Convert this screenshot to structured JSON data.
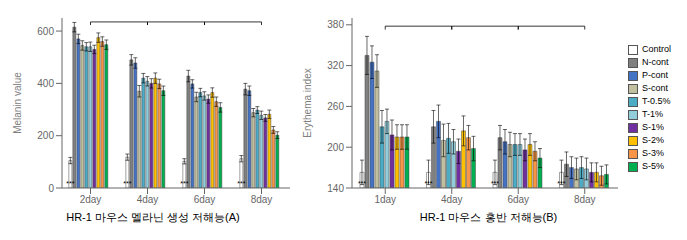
{
  "chart_data": [
    {
      "type": "bar",
      "title": "HR-1 마우스 멜라닌 생성 저해능(A)",
      "ylabel": "Melanin value",
      "categories": [
        "2day",
        "4day",
        "6day",
        "8day"
      ],
      "series": [
        {
          "name": "Control",
          "color": "#ffffff",
          "values": [
            105,
            118,
            102,
            112
          ],
          "errors": [
            12,
            12,
            10,
            12
          ]
        },
        {
          "name": "N-cont",
          "color": "#808080",
          "values": [
            615,
            490,
            428,
            378
          ],
          "errors": [
            18,
            20,
            22,
            22
          ]
        },
        {
          "name": "P-cont",
          "color": "#4472c4",
          "values": [
            570,
            478,
            398,
            372
          ],
          "errors": [
            18,
            20,
            16,
            18
          ]
        },
        {
          "name": "S-cont",
          "color": "#c0c0a0",
          "values": [
            545,
            370,
            348,
            288
          ],
          "errors": [
            18,
            22,
            18,
            16
          ]
        },
        {
          "name": "T-0.5%",
          "color": "#4bacc6",
          "values": [
            540,
            420,
            365,
            298
          ],
          "errors": [
            16,
            18,
            16,
            13
          ]
        },
        {
          "name": "T-1%",
          "color": "#92cddc",
          "values": [
            540,
            408,
            352,
            278
          ],
          "errors": [
            18,
            18,
            16,
            16
          ]
        },
        {
          "name": "S-1%",
          "color": "#7030a0",
          "values": [
            530,
            400,
            340,
            268
          ],
          "errors": [
            16,
            18,
            16,
            13
          ]
        },
        {
          "name": "S-2%",
          "color": "#ffc000",
          "values": [
            575,
            420,
            365,
            282
          ],
          "errors": [
            18,
            20,
            18,
            16
          ]
        },
        {
          "name": "S-3%",
          "color": "#f79646",
          "values": [
            560,
            398,
            330,
            222
          ],
          "errors": [
            18,
            18,
            18,
            13
          ]
        },
        {
          "name": "S-5%",
          "color": "#00b050",
          "values": [
            548,
            372,
            308,
            202
          ],
          "errors": [
            18,
            18,
            18,
            13
          ]
        }
      ],
      "ylim": [
        0,
        650
      ],
      "yticks": [
        0,
        200,
        400,
        600
      ],
      "grid": false,
      "annotations": [
        {
          "category": "2day",
          "text": "***"
        },
        {
          "category": "4day",
          "text": "***"
        },
        {
          "category": "6day",
          "text": "***"
        },
        {
          "category": "8day",
          "text": "***"
        }
      ],
      "brackets": [
        {
          "from": "2day",
          "to": "4day",
          "y": 635,
          "drop": 12
        },
        {
          "from": "4day",
          "to": "6day",
          "y": 635,
          "drop": 12
        },
        {
          "from": "6day",
          "to": "8day",
          "y": 635,
          "drop": 12
        }
      ]
    },
    {
      "type": "bar",
      "title": "HR-1 마우스  홍반 저해능(B)",
      "ylabel": "Erythema index",
      "categories": [
        "1day",
        "4day",
        "6day",
        "8day"
      ],
      "series": [
        {
          "name": "Control",
          "color": "#ffffff",
          "values": [
            163,
            163,
            163,
            163
          ],
          "errors": [
            18,
            18,
            18,
            18
          ]
        },
        {
          "name": "N-cont",
          "color": "#808080",
          "values": [
            335,
            230,
            214,
            175
          ],
          "errors": [
            28,
            24,
            18,
            18
          ]
        },
        {
          "name": "P-cont",
          "color": "#4472c4",
          "values": [
            325,
            238,
            208,
            170
          ],
          "errors": [
            24,
            24,
            18,
            16
          ]
        },
        {
          "name": "S-cont",
          "color": "#c0c0a0",
          "values": [
            312,
            210,
            204,
            168
          ],
          "errors": [
            24,
            24,
            18,
            16
          ]
        },
        {
          "name": "T-0.5%",
          "color": "#4bacc6",
          "values": [
            230,
            213,
            204,
            170
          ],
          "errors": [
            24,
            22,
            16,
            16
          ]
        },
        {
          "name": "T-1%",
          "color": "#92cddc",
          "values": [
            238,
            208,
            204,
            168
          ],
          "errors": [
            18,
            18,
            16,
            16
          ]
        },
        {
          "name": "S-1%",
          "color": "#7030a0",
          "values": [
            218,
            194,
            196,
            163
          ],
          "errors": [
            22,
            18,
            16,
            14
          ]
        },
        {
          "name": "S-2%",
          "color": "#ffc000",
          "values": [
            215,
            224,
            204,
            163
          ],
          "errors": [
            18,
            22,
            16,
            14
          ]
        },
        {
          "name": "S-3%",
          "color": "#f79646",
          "values": [
            215,
            214,
            194,
            158
          ],
          "errors": [
            18,
            18,
            14,
            14
          ]
        },
        {
          "name": "S-5%",
          "color": "#00b050",
          "values": [
            215,
            198,
            184,
            160
          ],
          "errors": [
            18,
            18,
            14,
            14
          ]
        }
      ],
      "ylim": [
        140,
        390
      ],
      "yticks": [
        140,
        200,
        260,
        320,
        380
      ],
      "grid": false,
      "legend": "right",
      "annotations": [
        {
          "category": "1day",
          "text": "***"
        },
        {
          "category": "4day",
          "text": "***"
        },
        {
          "category": "6day",
          "text": "***"
        },
        {
          "category": "8day",
          "text": "***"
        }
      ],
      "brackets": [
        {
          "from": "1day",
          "to": "4day",
          "y": 378,
          "drop": 5
        },
        {
          "from": "4day",
          "to": "6day",
          "y": 378,
          "drop": 5
        },
        {
          "from": "6day",
          "to": "8day",
          "y": 378,
          "drop": 5
        }
      ]
    }
  ]
}
